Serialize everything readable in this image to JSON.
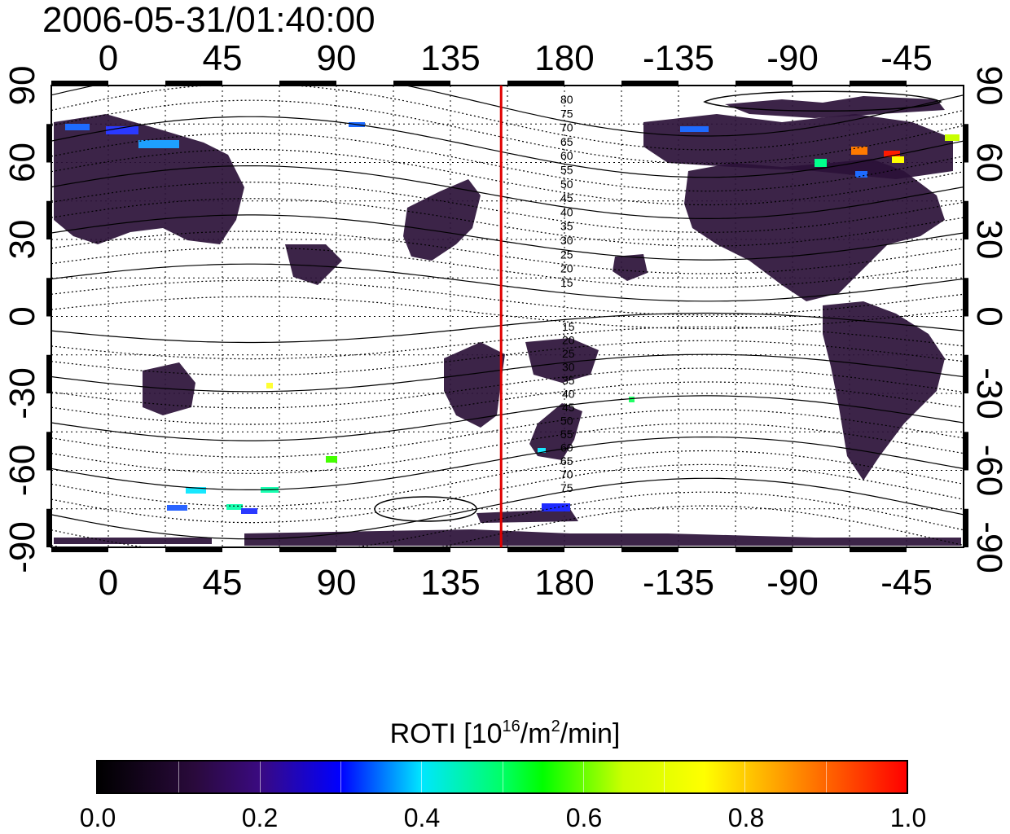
{
  "title": "2006-05-31/01:40:00",
  "map": {
    "top_lon_labels": [
      "0",
      "45",
      "90",
      "135",
      "180",
      "-135",
      "-90",
      "-45"
    ],
    "bottom_lon_labels": [
      "0",
      "45",
      "90",
      "135",
      "180",
      "-135",
      "-90",
      "-45"
    ],
    "left_lat_labels": [
      "90",
      "60",
      "30",
      "0",
      "-30",
      "-60",
      "-90"
    ],
    "right_lat_labels": [
      "90",
      "60",
      "30",
      "0",
      "-30",
      "-60",
      "-90"
    ],
    "contour_labels": [
      "80",
      "75",
      "70",
      "65",
      "60",
      "55",
      "50",
      "45",
      "40",
      "35",
      "30",
      "25",
      "20",
      "15",
      "15",
      "20",
      "25",
      "30",
      "35",
      "40",
      "45",
      "50",
      "55",
      "60",
      "65",
      "70",
      "75"
    ],
    "terminator_longitude": 155,
    "terminator_color": "#e00000"
  },
  "colorbar": {
    "title": "ROTI  [10",
    "title_sup1": "16",
    "title_mid": "/m",
    "title_sup2": "2",
    "title_end": "/min]",
    "tick_labels": [
      "0.0",
      "0.2",
      "0.4",
      "0.6",
      "0.8",
      "1.0"
    ],
    "range": [
      0.0,
      1.0
    ]
  }
}
